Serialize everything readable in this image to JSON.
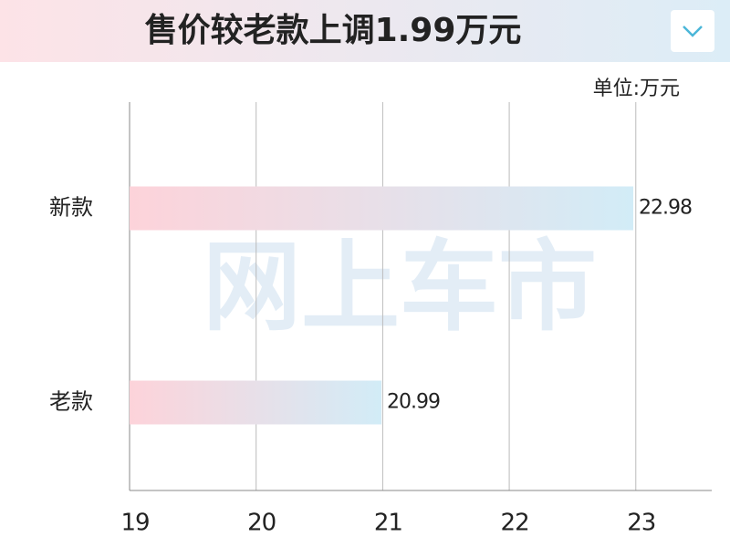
{
  "chart_data": {
    "type": "bar",
    "orientation": "horizontal",
    "title": "售价较老款上调1.99万元",
    "unit_label": "单位:万元",
    "watermark": "网上车市",
    "categories": [
      "新款",
      "老款"
    ],
    "values": [
      22.98,
      20.99
    ],
    "color": [
      "#fdd3da",
      "#d2ecf7"
    ],
    "xlim": [
      19,
      23.6
    ],
    "xticks": [
      19,
      20,
      21,
      22,
      23
    ],
    "grid": true
  }
}
